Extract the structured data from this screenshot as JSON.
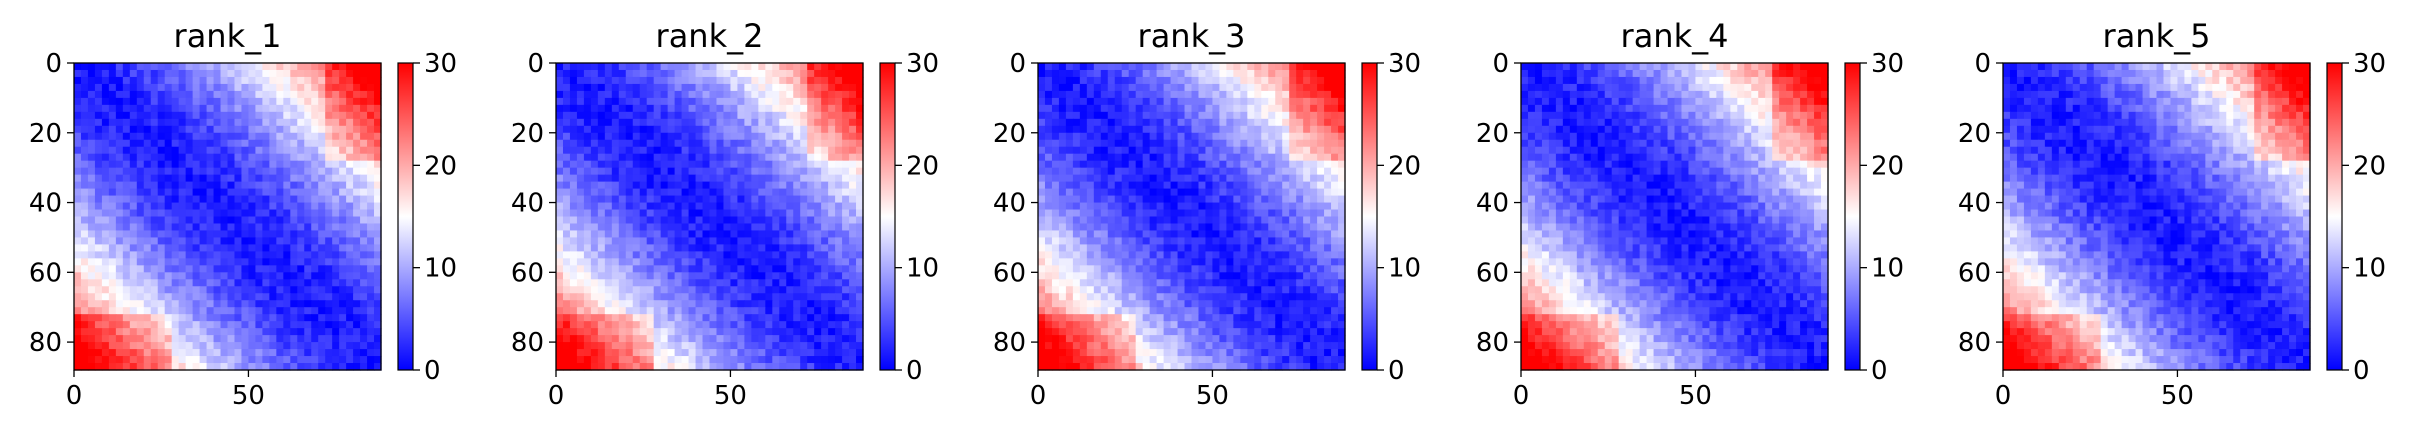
{
  "chart_data": [
    {
      "type": "heatmap",
      "title": "rank_1",
      "x_ticks": [
        0,
        50
      ],
      "y_ticks": [
        0,
        20,
        40,
        60,
        80
      ],
      "colorbar": {
        "ticks": [
          0,
          10,
          20,
          30
        ],
        "range": [
          0,
          30
        ],
        "colormap": [
          "#0000ff",
          "#ffffff",
          "#ff0000"
        ]
      },
      "extent": [
        0,
        88
      ]
    },
    {
      "type": "heatmap",
      "title": "rank_2",
      "x_ticks": [
        0,
        50
      ],
      "y_ticks": [
        0,
        20,
        40,
        60,
        80
      ],
      "colorbar": {
        "ticks": [
          0,
          10,
          20,
          30
        ],
        "range": [
          0,
          30
        ],
        "colormap": [
          "#0000ff",
          "#ffffff",
          "#ff0000"
        ]
      },
      "extent": [
        0,
        88
      ]
    },
    {
      "type": "heatmap",
      "title": "rank_3",
      "x_ticks": [
        0,
        50
      ],
      "y_ticks": [
        0,
        20,
        40,
        60,
        80
      ],
      "colorbar": {
        "ticks": [
          0,
          10,
          20,
          30
        ],
        "range": [
          0,
          30
        ],
        "colormap": [
          "#0000ff",
          "#ffffff",
          "#ff0000"
        ]
      },
      "extent": [
        0,
        88
      ]
    },
    {
      "type": "heatmap",
      "title": "rank_4",
      "x_ticks": [
        0,
        50
      ],
      "y_ticks": [
        0,
        20,
        40,
        60,
        80
      ],
      "colorbar": {
        "ticks": [
          0,
          10,
          20,
          30
        ],
        "range": [
          0,
          30
        ],
        "colormap": [
          "#0000ff",
          "#ffffff",
          "#ff0000"
        ]
      },
      "extent": [
        0,
        88
      ]
    },
    {
      "type": "heatmap",
      "title": "rank_5",
      "x_ticks": [
        0,
        50
      ],
      "y_ticks": [
        0,
        20,
        40,
        60,
        80
      ],
      "colorbar": {
        "ticks": [
          0,
          10,
          20,
          30
        ],
        "range": [
          0,
          30
        ],
        "colormap": [
          "#0000ff",
          "#ffffff",
          "#ff0000"
        ]
      },
      "extent": [
        0,
        88
      ]
    }
  ]
}
